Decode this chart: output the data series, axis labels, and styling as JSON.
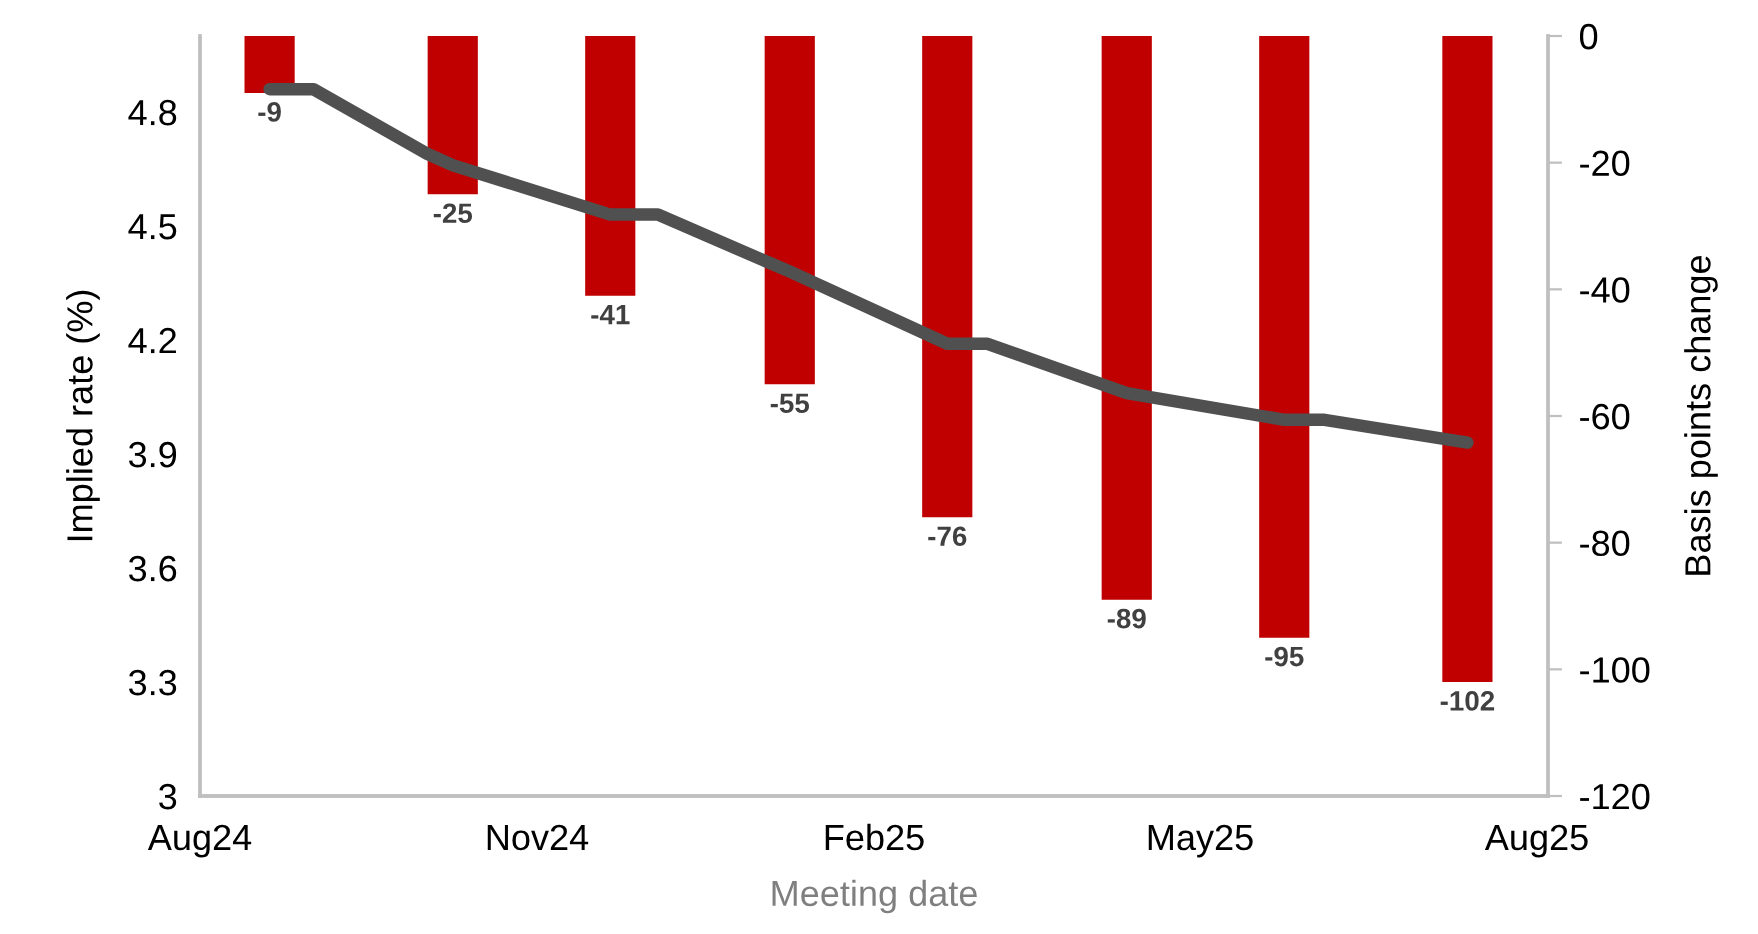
{
  "chart_data": {
    "type": "bar",
    "xlabel": "Meeting date",
    "ylabel": "Implied rate (%)",
    "y2label": "Basis points change",
    "x": [
      "2024-08-20",
      "2024-10-09",
      "2024-11-21",
      "2025-01-09",
      "2025-02-21",
      "2025-04-11",
      "2025-05-24",
      "2025-07-13"
    ],
    "series": [
      {
        "axis": "y2",
        "color": "#c00000",
        "values": [
          -9,
          -25,
          -41,
          -55,
          -76,
          -89,
          -95,
          -102
        ],
        "value_labels": [
          "-9",
          "-25",
          "-41",
          "-55",
          "-76",
          "-89",
          "-95",
          "-102"
        ]
      },
      {
        "type": "line",
        "axis": "y",
        "color": "#505050",
        "x": [
          "2024-08-20",
          "2024-09-01",
          "2024-10-02",
          "2024-10-09",
          "2024-11-21",
          "2024-12-04",
          "2025-01-09",
          "2025-02-21",
          "2025-03-04",
          "2025-04-11",
          "2025-05-24",
          "2025-06-04",
          "2025-07-13"
        ],
        "values": [
          4.86,
          4.86,
          4.69,
          4.66,
          4.53,
          4.53,
          4.38,
          4.19,
          4.19,
          4.06,
          3.99,
          3.99,
          3.93
        ]
      }
    ],
    "xlim": [
      "2024-08-01",
      "2025-08-04"
    ],
    "xticks": [
      {
        "value": "2024-08-01",
        "label": "Aug24"
      },
      {
        "value": "2024-11-01",
        "label": "Nov24"
      },
      {
        "value": "2025-02-01",
        "label": "Feb25"
      },
      {
        "value": "2025-05-01",
        "label": "May25"
      },
      {
        "value": "2025-08-01",
        "label": "Aug25"
      }
    ],
    "ylim": [
      3,
      5.0
    ],
    "yticks": [
      3,
      3.3,
      3.6,
      3.9,
      4.2,
      4.5,
      4.8
    ],
    "y2lim": [
      -120,
      0
    ],
    "y2ticks": [
      -120,
      -100,
      -80,
      -60,
      -40,
      -20,
      0
    ],
    "grid": false,
    "legend": false
  }
}
